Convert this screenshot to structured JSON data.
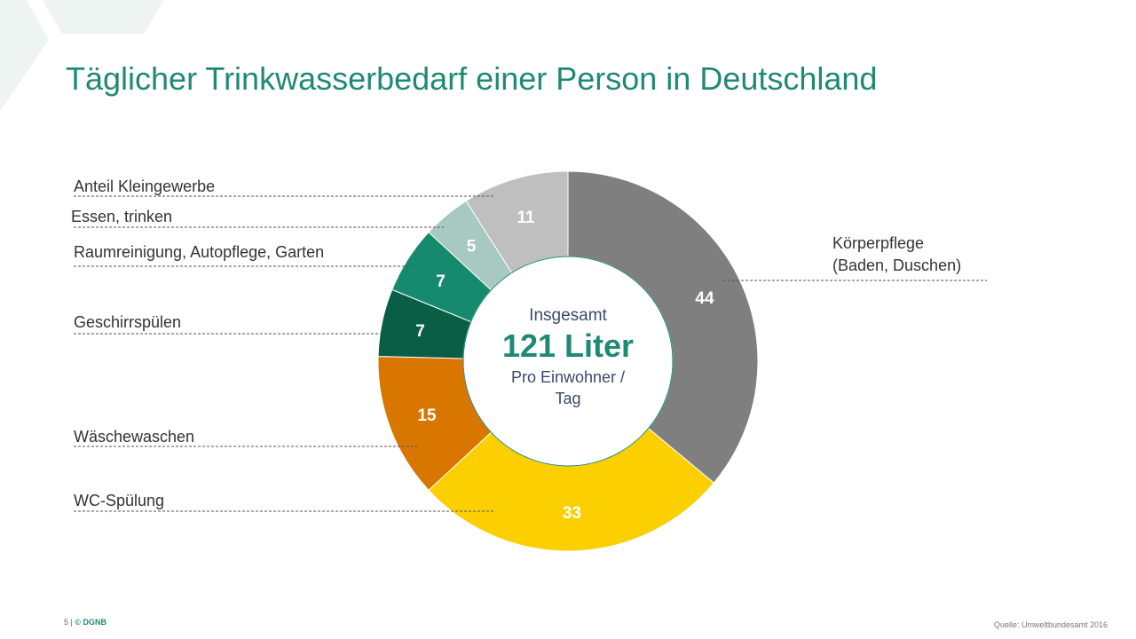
{
  "title": "Täglicher Trinkwasserbedarf einer Person in Deutschland",
  "center": {
    "line1": "Insgesamt",
    "total": "121 Liter",
    "line3": "Pro Einwohner /",
    "line4": "Tag"
  },
  "labels": {
    "koerperpflege_1": "Körperpflege",
    "koerperpflege_2": "(Baden, Duschen)",
    "wc": "WC-Spülung",
    "waesche": "Wäschewaschen",
    "geschirr": "Geschirrspülen",
    "raum": "Raumreinigung, Autopflege, Garten",
    "essen": "Essen, trinken",
    "kleingewerbe": "Anteil Kleingewerbe"
  },
  "footer": {
    "page": "5",
    "separator": "|",
    "brand": "© DGNB",
    "source": "Quelle: Umweltbundesamt 2016"
  },
  "chart_data": {
    "type": "pie",
    "donut": true,
    "title": "Täglicher Trinkwasserbedarf einer Person in Deutschland",
    "unit": "Liter",
    "total": 121,
    "categories": [
      "Körperpflege (Baden, Duschen)",
      "WC-Spülung",
      "Wäschewaschen",
      "Geschirrspülen",
      "Raumreinigung, Autopflege, Garten",
      "Essen, trinken",
      "Anteil Kleingewerbe"
    ],
    "values": [
      44,
      33,
      15,
      7,
      7,
      5,
      11
    ],
    "colors": [
      "#7f7f7f",
      "#fcd000",
      "#d97600",
      "#0a5e46",
      "#168a6e",
      "#a8c9bf",
      "#bfbfbf"
    ],
    "value_label_color": "#ffffff"
  }
}
